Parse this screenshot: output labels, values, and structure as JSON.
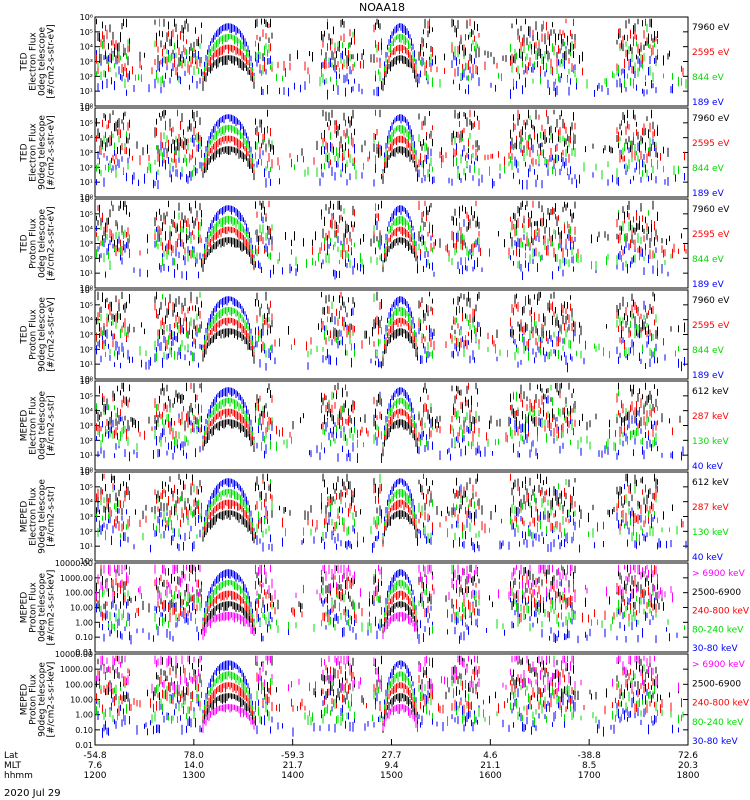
{
  "title": "NOAA18",
  "date_label": "2020 Jul 29",
  "colors": {
    "black": "#000000",
    "red": "#ff0000",
    "green": "#00dd00",
    "blue": "#0000ff",
    "magenta": "#ff00ff"
  },
  "footer": {
    "row_labels": [
      "Lat",
      "MLT",
      "hhmm"
    ],
    "columns": [
      {
        "lat": "-54.8",
        "mlt": "7.6",
        "hhmm": "1200"
      },
      {
        "lat": "78.0",
        "mlt": "14.0",
        "hhmm": "1300"
      },
      {
        "lat": "-59.3",
        "mlt": "21.7",
        "hhmm": "1400"
      },
      {
        "lat": "27.7",
        "mlt": "9.4",
        "hhmm": "1500"
      },
      {
        "lat": "4.6",
        "mlt": "21.1",
        "hhmm": "1600"
      },
      {
        "lat": "-38.8",
        "mlt": "8.5",
        "hhmm": "1700"
      },
      {
        "lat": "72.6",
        "mlt": "20.3",
        "hhmm": "1800"
      }
    ]
  },
  "chart_data": [
    {
      "type": "scatter",
      "ylabel": "TED\nElectron Flux\n0deg telescope\n[#/cm2-s-str-eV]",
      "yscale": "log",
      "ylim": [
        1,
        1000000
      ],
      "yticks": [
        "10⁰",
        "10¹",
        "10²",
        "10³",
        "10⁴",
        "10⁵",
        "10⁶"
      ],
      "xlim": [
        "1200",
        "1800"
      ],
      "legend": [
        {
          "label": "7960 eV",
          "color": "black"
        },
        {
          "label": "2595 eV",
          "color": "red"
        },
        {
          "label": "844 eV",
          "color": "green"
        },
        {
          "label": "189 eV",
          "color": "blue"
        }
      ]
    },
    {
      "type": "scatter",
      "ylabel": "TED\nElectron Flux\n90deg telescope\n[#/cm2-s-str-eV]",
      "yscale": "log",
      "ylim": [
        1,
        1000000
      ],
      "yticks": [
        "10⁰",
        "10¹",
        "10²",
        "10³",
        "10⁴",
        "10⁵",
        "10⁶"
      ],
      "xlim": [
        "1200",
        "1800"
      ],
      "legend": [
        {
          "label": "7960 eV",
          "color": "black"
        },
        {
          "label": "2595 eV",
          "color": "red"
        },
        {
          "label": "844 eV",
          "color": "green"
        },
        {
          "label": "189 eV",
          "color": "blue"
        }
      ]
    },
    {
      "type": "scatter",
      "ylabel": "TED\nProton Flux\n0deg telescope\n[#/cm2-s-str-eV]",
      "yscale": "log",
      "ylim": [
        1,
        1000000
      ],
      "yticks": [
        "10⁰",
        "10¹",
        "10²",
        "10³",
        "10⁴",
        "10⁵",
        "10⁶"
      ],
      "xlim": [
        "1200",
        "1800"
      ],
      "legend": [
        {
          "label": "7960 eV",
          "color": "black"
        },
        {
          "label": "2595 eV",
          "color": "red"
        },
        {
          "label": "844 eV",
          "color": "green"
        },
        {
          "label": "189 eV",
          "color": "blue"
        }
      ]
    },
    {
      "type": "scatter",
      "ylabel": "TED\nProton Flux\n90deg telescope\n[#/cm2-s-str-eV]",
      "yscale": "log",
      "ylim": [
        1,
        1000000
      ],
      "yticks": [
        "10⁰",
        "10¹",
        "10²",
        "10³",
        "10⁴",
        "10⁵",
        "10⁶"
      ],
      "xlim": [
        "1200",
        "1800"
      ],
      "legend": [
        {
          "label": "7960 eV",
          "color": "black"
        },
        {
          "label": "2595 eV",
          "color": "red"
        },
        {
          "label": "844 eV",
          "color": "green"
        },
        {
          "label": "189 eV",
          "color": "blue"
        }
      ]
    },
    {
      "type": "scatter",
      "ylabel": "MEPED\nElectron Flux\n0deg telescope\n[#/cm2-s-str]",
      "yscale": "log",
      "ylim": [
        1,
        1000000
      ],
      "yticks": [
        "10⁰",
        "10¹",
        "10²",
        "10³",
        "10⁴",
        "10⁵",
        "10⁶"
      ],
      "xlim": [
        "1200",
        "1800"
      ],
      "legend": [
        {
          "label": "612 keV",
          "color": "black"
        },
        {
          "label": "287 keV",
          "color": "red"
        },
        {
          "label": "130 keV",
          "color": "green"
        },
        {
          "label": "40 keV",
          "color": "blue"
        }
      ]
    },
    {
      "type": "scatter",
      "ylabel": "MEPED\nElectron Flux\n90deg telescope\n[#/cm2-s-str]",
      "yscale": "log",
      "ylim": [
        1,
        1000000
      ],
      "yticks": [
        "10⁰",
        "10¹",
        "10²",
        "10³",
        "10⁴",
        "10⁵",
        "10⁶"
      ],
      "xlim": [
        "1200",
        "1800"
      ],
      "legend": [
        {
          "label": "612 keV",
          "color": "black"
        },
        {
          "label": "287 keV",
          "color": "red"
        },
        {
          "label": "130 keV",
          "color": "green"
        },
        {
          "label": "40 keV",
          "color": "blue"
        }
      ]
    },
    {
      "type": "scatter",
      "ylabel": "MEPED\nProton Flux\n0deg telescope\n[#/cm2-s-sr-keV]",
      "yscale": "log",
      "ylim": [
        0.01,
        10000
      ],
      "yticks": [
        "0.01",
        "0.10",
        "1.00",
        "10.00",
        "100.00",
        "1000.00",
        "10000.00"
      ],
      "xlim": [
        "1200",
        "1800"
      ],
      "legend": [
        {
          "label": "> 6900 keV",
          "color": "magenta"
        },
        {
          "label": "2500-6900",
          "color": "black"
        },
        {
          "label": "240-800 keV",
          "color": "red"
        },
        {
          "label": "80-240 keV",
          "color": "green"
        },
        {
          "label": "30-80 keV",
          "color": "blue"
        }
      ]
    },
    {
      "type": "scatter",
      "ylabel": "MEPED\nProton Flux\n90deg telescope\n[#/cm2-s-sr-keV]",
      "yscale": "log",
      "ylim": [
        0.01,
        10000
      ],
      "yticks": [
        "0.01",
        "0.10",
        "1.00",
        "10.00",
        "100.00",
        "1000.00",
        "10000.00"
      ],
      "xlim": [
        "1200",
        "1800"
      ],
      "legend": [
        {
          "label": "> 6900 keV",
          "color": "magenta"
        },
        {
          "label": "2500-6900",
          "color": "black"
        },
        {
          "label": "240-800 keV",
          "color": "red"
        },
        {
          "label": "80-240 keV",
          "color": "green"
        },
        {
          "label": "30-80 keV",
          "color": "blue"
        }
      ]
    }
  ]
}
